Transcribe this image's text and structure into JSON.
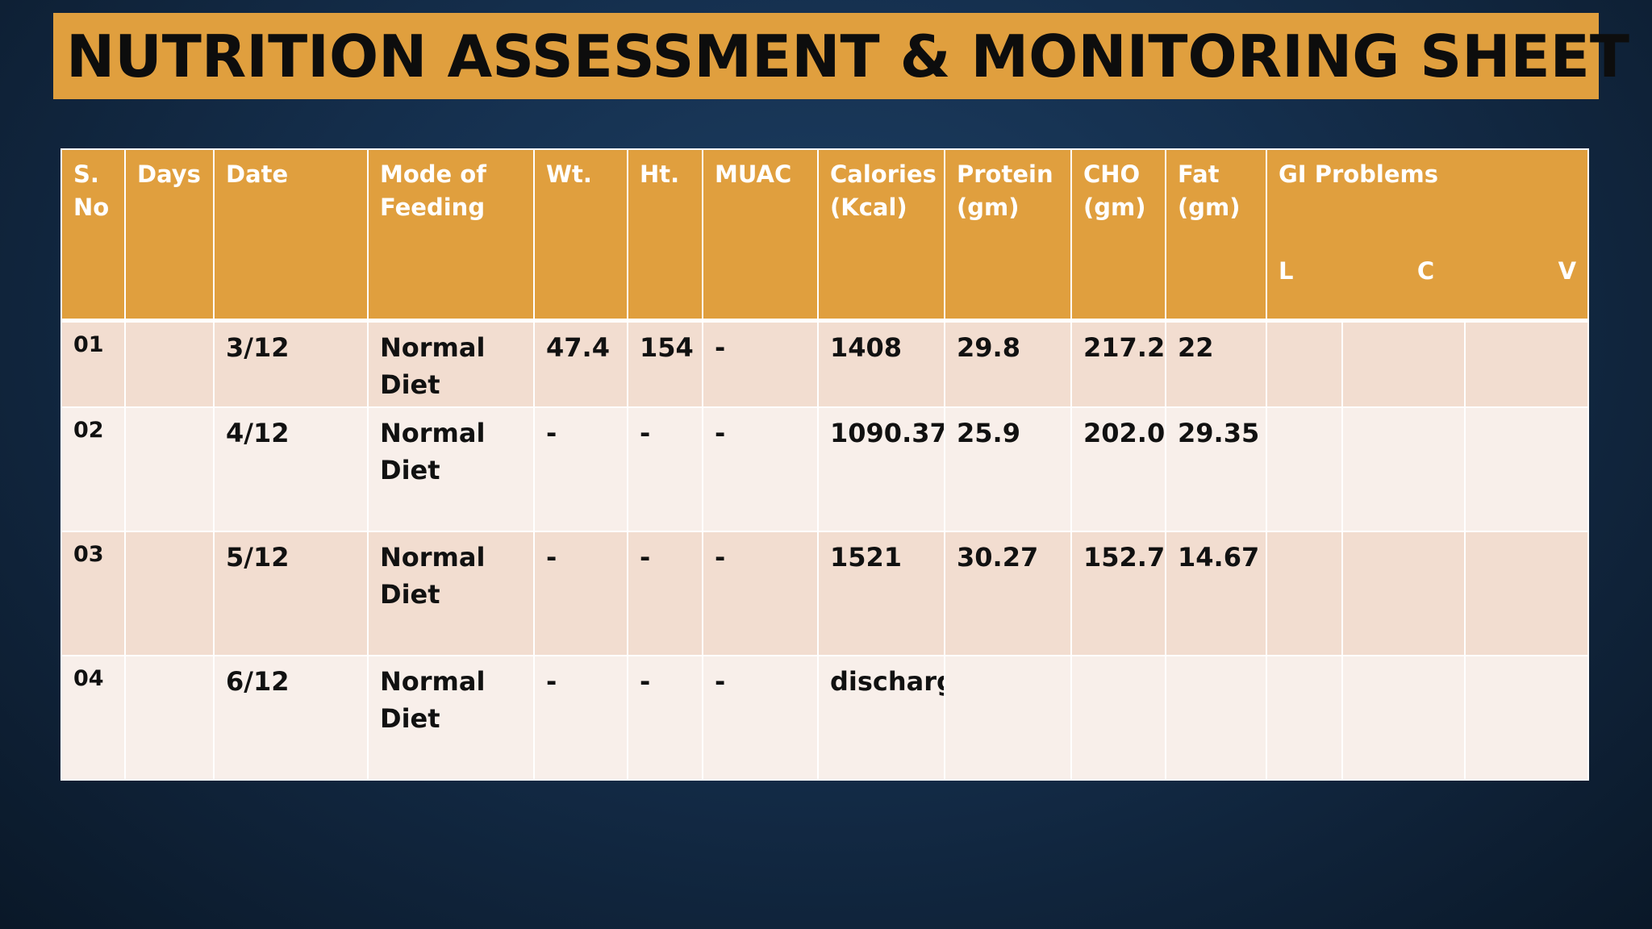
{
  "title": "NUTRITION ASSESSMENT & MONITORING SHEET",
  "headers": {
    "sno": "S. No",
    "days": "Days",
    "date": "Date",
    "mode": "Mode of Feeding",
    "wt": "Wt.",
    "ht": "Ht.",
    "muac": "MUAC",
    "calories": "Calories (Kcal)",
    "protein": "Protein (gm)",
    "cho": "CHO (gm)",
    "fat": "Fat (gm)",
    "gi": "GI Problems",
    "gi_l": "L",
    "gi_c": "C",
    "gi_v": "V"
  },
  "rows": [
    {
      "sno": "01",
      "days": "",
      "date": "3/12",
      "mode": "Normal Diet",
      "wt": "47.4",
      "ht": "154",
      "muac": "-",
      "calories": "1408",
      "protein": "29.8",
      "cho": "217.2",
      "fat": "22",
      "gi_l": "",
      "gi_c": "",
      "gi_v": ""
    },
    {
      "sno": "02",
      "days": "",
      "date": "4/12",
      "mode": "Normal Diet",
      "wt": "-",
      "ht": "-",
      "muac": "-",
      "calories": "1090.37",
      "protein": "25.9",
      "cho": "202.0",
      "fat": "29.35",
      "gi_l": "",
      "gi_c": "",
      "gi_v": ""
    },
    {
      "sno": "03",
      "days": "",
      "date": "5/12",
      "mode": "Normal Diet",
      "wt": "-",
      "ht": "-",
      "muac": "-",
      "calories": "1521",
      "protein": "30.27",
      "cho": "152.7",
      "fat": "14.67",
      "gi_l": "",
      "gi_c": "",
      "gi_v": ""
    },
    {
      "sno": "04",
      "days": "",
      "date": "6/12",
      "mode": "Normal Diet",
      "wt": "-",
      "ht": "-",
      "muac": "-",
      "calories": "discharge",
      "protein": "",
      "cho": "",
      "fat": "",
      "gi_l": "",
      "gi_c": "",
      "gi_v": ""
    }
  ],
  "colors": {
    "header_bg": "#e09f3e",
    "row_odd_bg": "#f2ddd0",
    "row_even_bg": "#f8efea",
    "slide_bg": "#15304f"
  }
}
